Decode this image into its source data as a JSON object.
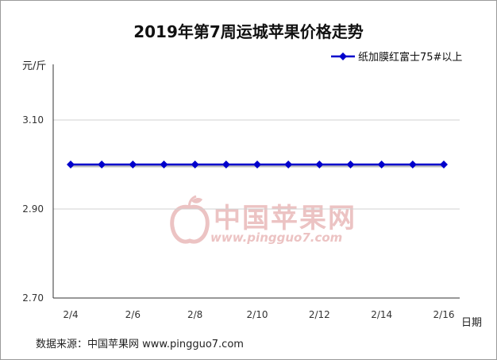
{
  "chart_data": {
    "type": "line",
    "title": "2019年第7周运城苹果价格走势",
    "ylabel": "元/斤",
    "xlabel": "日期",
    "ylim": [
      2.7,
      3.1
    ],
    "yticks": [
      "2.70",
      "2.90",
      "3.10"
    ],
    "yticks_values": [
      2.7,
      2.9,
      3.1
    ],
    "x": [
      "2/4",
      "2/5",
      "2/6",
      "2/7",
      "2/8",
      "2/9",
      "2/10",
      "2/11",
      "2/12",
      "2/13",
      "2/14",
      "2/15",
      "2/16"
    ],
    "xtick_labels": [
      "2/4",
      "2/6",
      "2/8",
      "2/10",
      "2/12",
      "2/14",
      "2/16"
    ],
    "series": [
      {
        "name": "纸加膜红富士75#以上",
        "color": "#0000cc",
        "values": [
          3.0,
          3.0,
          3.0,
          3.0,
          3.0,
          3.0,
          3.0,
          3.0,
          3.0,
          3.0,
          3.0,
          3.0,
          3.0
        ]
      }
    ],
    "grid": "horizontal",
    "legend_position": "top-right"
  },
  "watermark": {
    "text_cn": "中国苹果网",
    "url": "www.pingguo7.com"
  },
  "source_text": "数据来源：中国苹果网 www.pingguo7.com"
}
